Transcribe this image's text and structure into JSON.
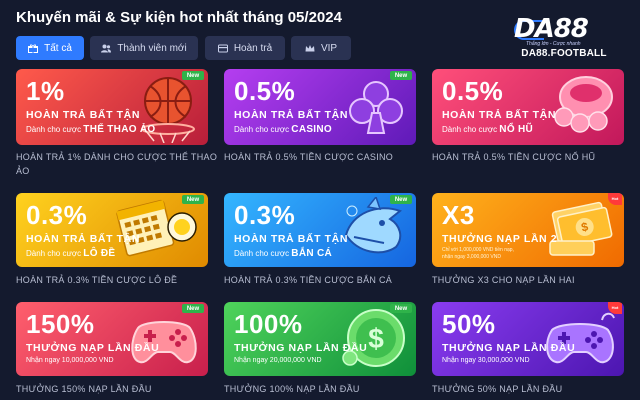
{
  "page": {
    "title": "Khuyến mãi & Sự kiện hot nhất tháng 05/2024"
  },
  "logo": {
    "mark_letters": "DA",
    "mark_digits": "88",
    "tagline": "Thắng lớn - Cược nhanh",
    "site": "DA88.FOOTBALL"
  },
  "tabs": [
    {
      "label": "Tất cả",
      "icon": "gift-icon",
      "active": true
    },
    {
      "label": "Thành viên mới",
      "icon": "users-icon",
      "active": false
    },
    {
      "label": "Hoàn trả",
      "icon": "card-icon",
      "active": false
    },
    {
      "label": "VIP",
      "icon": "crown-icon",
      "active": false
    }
  ],
  "cards": [
    {
      "big": "1%",
      "head": "HOÀN TRẢ BẤT TẬN",
      "sub_prefix": "Dành cho cược ",
      "sub_strong": "THỂ THAO ẢO",
      "badge": "New",
      "caption": "HOÀN TRẢ 1% DÀNH CHO CƯỢC THỂ THAO ẢO",
      "colors": [
        "#ff5a4b",
        "#b81e3a"
      ],
      "icon": "basketball-icon"
    },
    {
      "big": "0.5%",
      "head": "HOÀN TRẢ BẤT TẬN",
      "sub_prefix": "Dành cho cược ",
      "sub_strong": "CASINO",
      "badge": "New",
      "caption": "HOÀN TRẢ 0.5% TIỀN CƯỢC CASINO",
      "colors": [
        "#b53ef0",
        "#5f1ab8"
      ],
      "icon": "club-suit-icon"
    },
    {
      "big": "0.5%",
      "head": "HOÀN TRẢ BẤT TẬN",
      "sub_prefix": "Dành cho cược ",
      "sub_strong": "NỔ HŨ",
      "badge": "",
      "caption": "HOÀN TRẢ 0.5% TIỀN CƯỢC NỔ HŨ",
      "colors": [
        "#ff4f7a",
        "#c2185b"
      ],
      "icon": "coins-icon"
    },
    {
      "big": "0.3%",
      "head": "HOÀN TRẢ BẤT TẬN",
      "sub_prefix": "Dành cho cược ",
      "sub_strong": "LÔ ĐỀ",
      "badge": "New",
      "caption": "HOÀN TRẢ 0.3% TIỀN CƯỢC LÔ ĐỀ",
      "colors": [
        "#ffd21f",
        "#e08a00"
      ],
      "icon": "lottery-ticket-icon"
    },
    {
      "big": "0.3%",
      "head": "HOÀN TRẢ BẤT TẬN",
      "sub_prefix": "Dành cho cược ",
      "sub_strong": "BẮN CÁ",
      "badge": "New",
      "caption": "HOÀN TRẢ 0.3% TIỀN CƯỢC BẮN CÁ",
      "colors": [
        "#34b6ff",
        "#1565e0"
      ],
      "icon": "shark-icon"
    },
    {
      "big": "X3",
      "head": "THƯỞNG NẠP LẦN 2",
      "sub_line1": "Chỉ với 1,000,000 VND tiền nạp,",
      "sub_line2": "nhận ngay 3,000,000 VND",
      "badge": "Hot",
      "caption": "THƯỞNG X3 CHO NẠP LẦN HAI",
      "colors": [
        "#ffb21c",
        "#f06a00"
      ],
      "icon": "money-stack-icon"
    },
    {
      "big": "150%",
      "head": "THƯỞNG NẠP LẦN ĐẦU",
      "sub_amount": "Nhận ngay 10,000,000 VND",
      "badge": "New",
      "caption": "THƯỞNG 150% NẠP LẦN ĐẦU",
      "colors": [
        "#ff5f6d",
        "#c81f4c"
      ],
      "icon": "gamepad-icon"
    },
    {
      "big": "100%",
      "head": "THƯỞNG NẠP LẦN ĐẦU",
      "sub_amount": "Nhận ngay 20,000,000 VND",
      "badge": "New",
      "caption": "THƯỞNG 100% NẠP LẦN ĐẦU",
      "colors": [
        "#4fd35b",
        "#0f8f3a"
      ],
      "icon": "dollar-coin-icon"
    },
    {
      "big": "50%",
      "head": "THƯỞNG NẠP LẦN ĐẦU",
      "sub_amount": "Nhận ngay 30,000,000 VND",
      "badge": "Hot",
      "caption": "THƯỞNG 50% NẠP LẦN ĐẦU",
      "colors": [
        "#8a3cf0",
        "#4c16b0"
      ],
      "icon": "gamepad-icon"
    }
  ]
}
